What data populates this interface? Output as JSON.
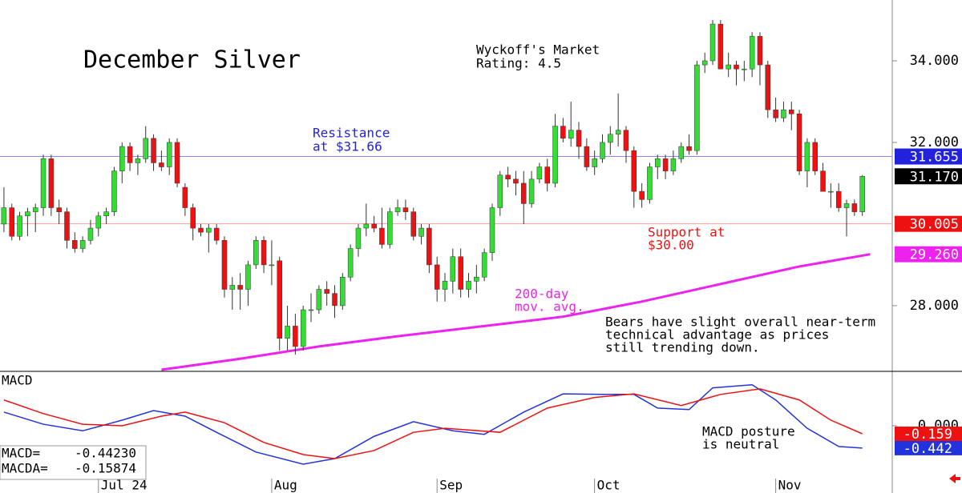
{
  "chart_data": {
    "type": "candlestick",
    "title": "December Silver",
    "notes": {
      "rating": [
        "Wyckoff's Market",
        "Rating: 4.5"
      ],
      "resistance": [
        "Resistance",
        "at $31.66"
      ],
      "support": [
        "Support at",
        "$30.00"
      ],
      "ma": [
        "200-day",
        "mov. avg."
      ],
      "outlook": [
        "Bears have slight overall near-term",
        "technical advantage as prices",
        "still trending down."
      ],
      "macd": [
        "MACD posture",
        "is neutral"
      ]
    },
    "up_color": "#33dd33",
    "down_color": "#ee1111",
    "xlim": [
      -0.5,
      112.8
    ],
    "xticks": [
      {
        "value": 12,
        "label": "Jul 24"
      },
      {
        "value": 34,
        "label": "Aug"
      },
      {
        "value": 55,
        "label": "Sep"
      },
      {
        "value": 75,
        "label": "Oct"
      },
      {
        "value": 98,
        "label": "Nov"
      }
    ],
    "ylim": [
      26.41,
      35.49
    ],
    "yticks": [
      {
        "value": 28,
        "label": "28.000"
      },
      {
        "value": 32,
        "label": "32.000"
      },
      {
        "value": 34,
        "label": "34.000"
      }
    ],
    "open": [
      30.0,
      30.4,
      29.7,
      30.2,
      30.3,
      30.4,
      31.6,
      30.4,
      30.3,
      29.6,
      29.4,
      29.6,
      29.9,
      30.2,
      30.3,
      31.3,
      31.9,
      31.5,
      31.6,
      32.1,
      31.5,
      31.4,
      32.0,
      30.9,
      30.4,
      29.9,
      29.8,
      29.9,
      29.6,
      28.4,
      28.5,
      28.4,
      29.0,
      29.6,
      29.0,
      29.1,
      27.2,
      27.5,
      27.0,
      27.9,
      27.9,
      28.4,
      28.3,
      28.0,
      28.7,
      29.4,
      29.9,
      30.0,
      29.9,
      29.5,
      30.3,
      30.4,
      30.3,
      29.7,
      29.9,
      29.0,
      28.4,
      28.6,
      29.2,
      28.4,
      28.6,
      28.7,
      29.3,
      30.4,
      31.2,
      31.1,
      31.0,
      30.5,
      31.1,
      31.4,
      31.0,
      32.4,
      32.1,
      32.3,
      31.9,
      31.4,
      31.6,
      32.0,
      32.2,
      32.3,
      31.8,
      30.8,
      30.6,
      31.4,
      31.6,
      31.3,
      31.6,
      31.9,
      31.8,
      33.9,
      34.0,
      34.9,
      33.8,
      33.9,
      33.8,
      33.8,
      34.6,
      33.9,
      32.8,
      32.6,
      32.8,
      32.7,
      31.3,
      32.0,
      31.3,
      30.8,
      30.8,
      30.4,
      30.5,
      30.3
    ],
    "high": [
      30.9,
      30.5,
      30.3,
      30.4,
      30.5,
      31.7,
      31.7,
      30.6,
      30.4,
      29.8,
      29.7,
      30.1,
      30.3,
      30.4,
      31.4,
      32.0,
      32.0,
      31.7,
      32.4,
      32.2,
      31.8,
      32.1,
      32.1,
      31.0,
      30.5,
      30.0,
      30.0,
      30.0,
      29.7,
      28.7,
      28.8,
      29.1,
      29.7,
      29.7,
      29.6,
      29.2,
      28.0,
      27.8,
      28.0,
      28.3,
      28.5,
      28.6,
      28.5,
      28.8,
      29.5,
      30.0,
      30.5,
      30.2,
      30.4,
      30.4,
      30.6,
      30.6,
      30.4,
      30.0,
      30.0,
      29.2,
      28.8,
      29.4,
      29.4,
      28.8,
      29.0,
      29.4,
      30.5,
      31.3,
      31.4,
      31.3,
      31.3,
      31.3,
      31.5,
      31.6,
      32.7,
      32.6,
      33.0,
      32.5,
      32.1,
      31.8,
      32.2,
      32.4,
      33.2,
      32.4,
      31.9,
      31.0,
      31.5,
      31.7,
      31.7,
      31.8,
      32.0,
      32.2,
      34.0,
      34.2,
      35.0,
      35.0,
      34.2,
      34.0,
      34.0,
      34.7,
      34.7,
      34.0,
      33.1,
      33.0,
      33.0,
      32.8,
      32.1,
      32.1,
      31.5,
      31.0,
      31.0,
      30.6,
      30.6,
      31.2
    ],
    "low": [
      29.8,
      29.6,
      29.6,
      29.7,
      29.8,
      30.2,
      30.2,
      30.0,
      29.4,
      29.3,
      29.3,
      29.5,
      29.7,
      30.0,
      30.2,
      31.0,
      31.3,
      31.2,
      31.5,
      31.3,
      31.3,
      31.2,
      30.9,
      30.2,
      29.6,
      29.7,
      29.3,
      29.5,
      28.2,
      27.9,
      27.9,
      28.0,
      28.9,
      28.8,
      28.5,
      26.9,
      26.9,
      26.8,
      26.9,
      27.6,
      27.8,
      28.0,
      27.7,
      27.9,
      28.6,
      29.2,
      29.7,
      29.8,
      29.4,
      29.4,
      30.2,
      30.1,
      29.6,
      29.5,
      28.8,
      28.1,
      28.1,
      28.3,
      28.2,
      28.2,
      28.3,
      28.6,
      29.1,
      30.2,
      30.9,
      30.7,
      30.0,
      30.4,
      31.0,
      30.8,
      30.9,
      32.0,
      31.9,
      31.6,
      31.3,
      31.2,
      31.5,
      31.7,
      31.9,
      31.5,
      30.4,
      30.4,
      30.5,
      31.1,
      31.1,
      31.2,
      31.5,
      31.7,
      31.7,
      33.7,
      33.9,
      33.8,
      33.6,
      33.4,
      33.5,
      33.6,
      33.4,
      32.6,
      32.5,
      32.5,
      32.3,
      31.2,
      30.9,
      31.2,
      30.8,
      30.4,
      30.3,
      29.7,
      30.2,
      30.2
    ],
    "close": [
      30.4,
      29.7,
      30.2,
      30.3,
      30.4,
      31.6,
      30.4,
      30.3,
      29.6,
      29.4,
      29.6,
      29.9,
      30.2,
      30.3,
      31.3,
      31.9,
      31.5,
      31.6,
      32.1,
      31.5,
      31.4,
      32.0,
      31.0,
      30.4,
      29.9,
      29.8,
      29.9,
      29.6,
      28.4,
      28.5,
      28.4,
      29.0,
      29.6,
      29.0,
      29.0,
      27.2,
      27.5,
      27.0,
      27.9,
      27.9,
      28.4,
      28.3,
      28.0,
      28.7,
      29.4,
      29.9,
      30.0,
      29.9,
      29.5,
      30.3,
      30.4,
      30.3,
      29.7,
      29.9,
      29.0,
      28.4,
      28.6,
      29.2,
      28.4,
      28.6,
      28.7,
      29.3,
      30.4,
      31.2,
      31.1,
      31.0,
      30.5,
      31.1,
      31.4,
      31.0,
      32.4,
      32.1,
      32.3,
      31.9,
      31.4,
      31.6,
      32.0,
      32.2,
      32.3,
      31.8,
      30.8,
      30.6,
      31.4,
      31.6,
      31.3,
      31.6,
      31.9,
      31.8,
      33.9,
      34.0,
      34.9,
      33.8,
      33.9,
      33.8,
      33.8,
      34.6,
      33.9,
      32.8,
      32.6,
      32.8,
      32.7,
      31.3,
      32.0,
      31.3,
      30.8,
      30.8,
      30.4,
      30.5,
      30.3,
      31.17
    ],
    "moving_average": {
      "color": "#ee22ee",
      "x": [
        20,
        30,
        40,
        50,
        61,
        71,
        81,
        91,
        101,
        110
      ],
      "values": [
        26.43,
        26.7,
        27.0,
        27.25,
        27.5,
        27.73,
        28.1,
        28.53,
        28.96,
        29.26
      ]
    },
    "price_labels": [
      {
        "value": 31.655,
        "color": "#2222dd",
        "line": "#8888ee"
      },
      {
        "value": 31.17,
        "label": "31.170",
        "color": "#000000"
      },
      {
        "value": 30.005,
        "color": "#ee1111",
        "line": "#ff9999"
      },
      {
        "value": 29.26,
        "label": "29.260",
        "color": "#ee22ee"
      }
    ],
    "macd": {
      "title": "MACD",
      "ylim": [
        -1.33,
        1.06
      ],
      "yticks": [
        {
          "value": 0,
          "label": "0.000"
        }
      ],
      "series": [
        {
          "name": "MACD=",
          "color": "#2233dd",
          "readout": {
            "value": -0.4423,
            "label": "-0.44230"
          },
          "end_label": -0.442,
          "x": [
            0,
            5,
            10,
            15,
            19,
            23,
            27,
            32,
            38,
            42,
            47,
            52,
            57,
            61,
            66,
            71,
            76,
            80,
            83,
            87,
            90,
            95,
            98,
            102,
            106,
            109
          ],
          "values": [
            0.27,
            0.03,
            -0.1,
            0.11,
            0.3,
            0.19,
            -0.13,
            -0.52,
            -0.76,
            -0.65,
            -0.21,
            0.08,
            -0.1,
            -0.17,
            0.27,
            0.63,
            0.62,
            0.62,
            0.35,
            0.32,
            0.75,
            0.81,
            0.51,
            -0.05,
            -0.41,
            -0.4423
          ]
        },
        {
          "name": "MACDA=",
          "color": "#ee1111",
          "readout": {
            "value": -0.15874,
            "label": "-0.15874"
          },
          "end_label": -0.159,
          "x": [
            0,
            5,
            10,
            15,
            20,
            23,
            28,
            33,
            38,
            42,
            47,
            52,
            56,
            63,
            69,
            75,
            80,
            86,
            91,
            96,
            101,
            105,
            109
          ],
          "values": [
            0.51,
            0.24,
            0.03,
            0,
            0.19,
            0.27,
            0.06,
            -0.33,
            -0.57,
            -0.65,
            -0.49,
            -0.13,
            -0.05,
            -0.13,
            0.35,
            0.56,
            0.63,
            0.4,
            0.62,
            0.73,
            0.51,
            0.11,
            -0.15874
          ]
        }
      ]
    }
  }
}
